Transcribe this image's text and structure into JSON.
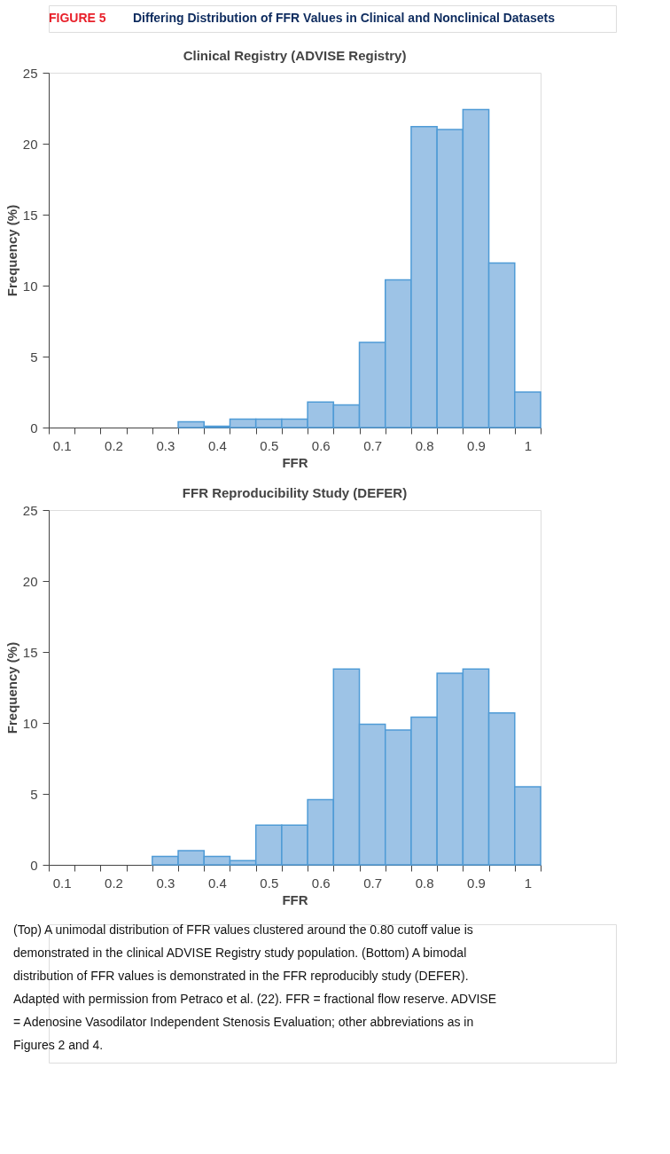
{
  "chart_data": [
    {
      "type": "histogram",
      "title": "Clinical Registry (ADVISE Registry)",
      "xlabel": "FFR",
      "ylabel": "Frequency (%)",
      "bins": [
        0.325,
        0.375,
        0.425,
        0.475,
        0.525,
        0.575,
        0.625,
        0.675,
        0.725,
        0.775,
        0.825,
        0.875,
        0.925,
        0.975,
        1.025
      ],
      "values": [
        0.4,
        0.1,
        0.6,
        0.6,
        0.6,
        1.8,
        1.6,
        6.0,
        10.4,
        21.2,
        21.0,
        22.4,
        11.6,
        2.5
      ],
      "color": "#9dc3e6",
      "xlim": [
        0.075,
        1.025
      ],
      "xticks": [
        {
          "value": 0.075,
          "label": null
        },
        0.1,
        {
          "value": 0.125,
          "label": null
        },
        {
          "value": 0.175,
          "label": null
        },
        0.2,
        {
          "value": 0.225,
          "label": null
        },
        {
          "value": 0.275,
          "label": null
        },
        0.3,
        {
          "value": 0.325,
          "label": null
        },
        {
          "value": 0.375,
          "label": null
        },
        0.4,
        {
          "value": 0.425,
          "label": null
        },
        {
          "value": 0.475,
          "label": null
        },
        0.5,
        {
          "value": 0.525,
          "label": null
        },
        {
          "value": 0.575,
          "label": null
        },
        0.6,
        {
          "value": 0.625,
          "label": null
        },
        {
          "value": 0.675,
          "label": null
        },
        0.7,
        {
          "value": 0.725,
          "label": null
        },
        {
          "value": 0.775,
          "label": null
        },
        0.8,
        {
          "value": 0.825,
          "label": null
        },
        {
          "value": 0.875,
          "label": null
        },
        0.9,
        {
          "value": 0.925,
          "label": null
        },
        {
          "value": 0.975,
          "label": null
        },
        1,
        {
          "value": 1.025,
          "label": null
        }
      ],
      "ylim": [
        0,
        25
      ],
      "yticks": [
        0,
        5,
        10,
        15,
        20,
        25
      ],
      "annotations": [
        "FIGURE 5",
        "Differing Distribution of FFR Values in Clinical and Nonclinical Datasets"
      ]
    },
    {
      "type": "histogram",
      "title": "FFR Reproducibility Study (DEFER)",
      "xlabel": "FFR",
      "ylabel": "Frequency (%)",
      "bins": [
        0.275,
        0.325,
        0.375,
        0.425,
        0.475,
        0.525,
        0.575,
        0.625,
        0.675,
        0.725,
        0.775,
        0.825,
        0.875,
        0.925,
        0.975,
        1.025
      ],
      "values": [
        0.6,
        1.0,
        0.6,
        0.3,
        2.8,
        2.8,
        4.6,
        13.8,
        9.9,
        9.5,
        10.4,
        13.5,
        13.8,
        10.7,
        5.5
      ],
      "color": "#9dc3e6",
      "xlim": [
        0.075,
        1.025
      ],
      "xticks": [
        {
          "value": 0.075,
          "label": null
        },
        0.1,
        {
          "value": 0.125,
          "label": null
        },
        {
          "value": 0.175,
          "label": null
        },
        0.2,
        {
          "value": 0.225,
          "label": null
        },
        {
          "value": 0.275,
          "label": null
        },
        0.3,
        {
          "value": 0.325,
          "label": null
        },
        {
          "value": 0.375,
          "label": null
        },
        0.4,
        {
          "value": 0.425,
          "label": null
        },
        {
          "value": 0.475,
          "label": null
        },
        0.5,
        {
          "value": 0.525,
          "label": null
        },
        {
          "value": 0.575,
          "label": null
        },
        0.6,
        {
          "value": 0.625,
          "label": null
        },
        {
          "value": 0.675,
          "label": null
        },
        0.7,
        {
          "value": 0.725,
          "label": null
        },
        {
          "value": 0.775,
          "label": null
        },
        0.8,
        {
          "value": 0.825,
          "label": null
        },
        {
          "value": 0.875,
          "label": null
        },
        0.9,
        {
          "value": 0.925,
          "label": null
        },
        {
          "value": 0.975,
          "label": null
        },
        1,
        {
          "value": 1.025,
          "label": null
        }
      ],
      "ylim": [
        0,
        25
      ],
      "yticks": [
        0,
        5,
        10,
        15,
        20,
        25
      ],
      "annotations": [
        "(Top) A unimodal distribution of FFR values clustered around the 0.80 cutoff value is demonstrated in the clinical ADVISE Registry study population. (Bottom) A bimodal distribution of FFR values is demonstrated in the FFR reproducibly study (DEFER). Adapted with permission from Petraco et al. (22). FFR = fractional flow reserve. ADVISE = Adenosine Vasodilator Independent Stenosis Evaluation; other abbreviations as in Figures 2 and 4."
      ]
    }
  ]
}
